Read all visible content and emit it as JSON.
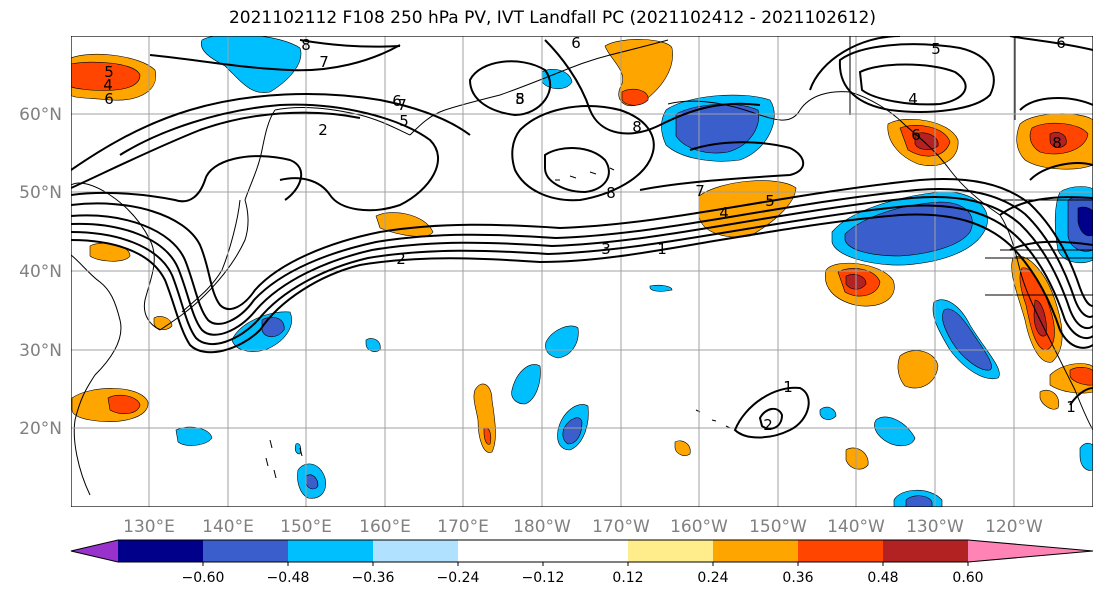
{
  "title": "2021102112 F108 250 hPa PV, IVT Landfall PC (2021102412 - 2021102612)",
  "map": {
    "lat_labels": [
      "60°N",
      "50°N",
      "40°N",
      "30°N",
      "20°N"
    ],
    "lon_labels": [
      "130°E",
      "140°E",
      "150°E",
      "160°E",
      "170°E",
      "180°W",
      "170°W",
      "160°W",
      "150°W",
      "140°W",
      "130°W",
      "120°W"
    ],
    "contour_labels": [
      "8",
      "7",
      "6",
      "5",
      "4",
      "6",
      "5",
      "6",
      "7",
      "8",
      "2",
      "6",
      "5",
      "8",
      "8",
      "7",
      "4",
      "5",
      "2",
      "3",
      "1",
      "4",
      "5",
      "6",
      "8",
      "1",
      "2",
      "1"
    ]
  },
  "colorbar": {
    "colors": [
      "#9932cc",
      "#00008b",
      "#3a5fcd",
      "#00bfff",
      "#b0e2ff",
      "#ffffff",
      "#ffffff",
      "#ffec8b",
      "#ffa500",
      "#ff4500",
      "#b22222",
      "#ff83b5"
    ],
    "tick_labels": [
      "−0.60",
      "−0.48",
      "−0.36",
      "−0.24",
      "−0.12",
      "0.12",
      "0.24",
      "0.36",
      "0.48",
      "0.60"
    ]
  }
}
